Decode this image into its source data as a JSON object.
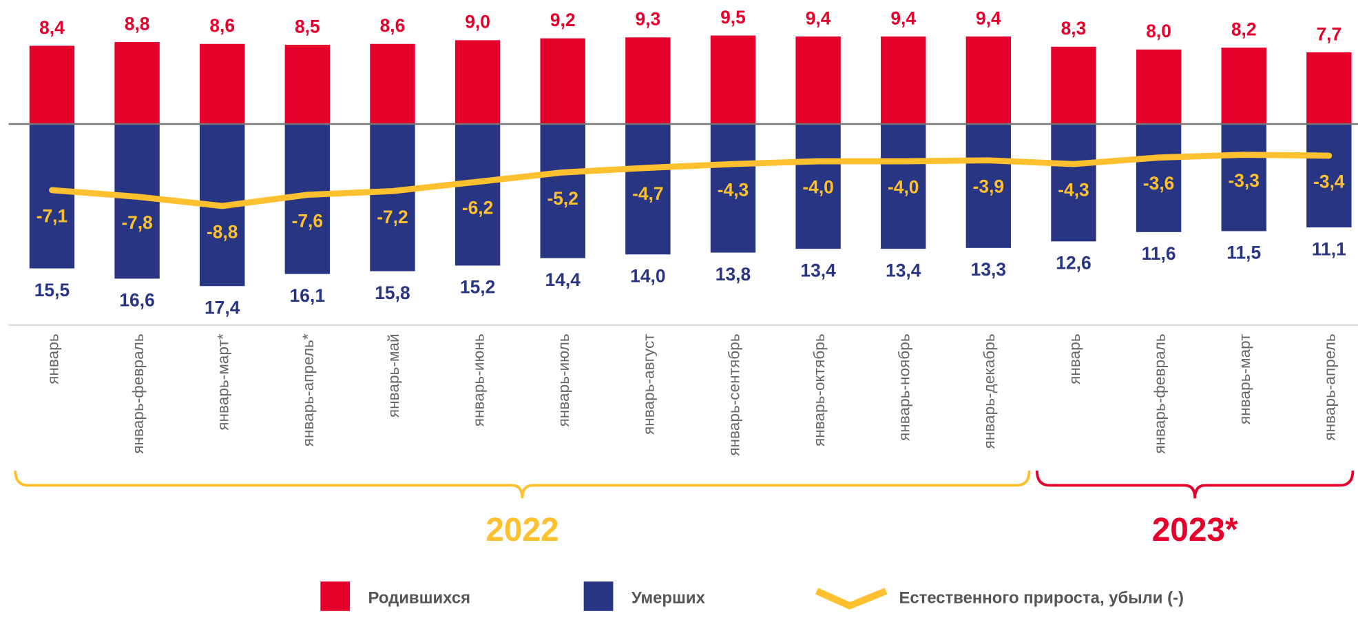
{
  "chart_data": {
    "type": "bar",
    "groups": [
      {
        "label": "2022",
        "color": "#fdc02f",
        "categories": [
          "январь",
          "январь-февраль",
          "январь-март*",
          "январь-апрель*",
          "январь-май",
          "январь-июнь",
          "январь-июль",
          "январь-август",
          "январь-сентябрь",
          "январь-октябрь",
          "январь-ноябрь",
          "январь-декабрь"
        ]
      },
      {
        "label": "2023*",
        "color": "#e4002b",
        "categories": [
          "январь",
          "январь-февраль",
          "январь-март",
          "январь-апрель"
        ]
      }
    ],
    "series": [
      {
        "name": "Родившихся",
        "color": "#e4002b",
        "direction": "up",
        "values": [
          8.4,
          8.8,
          8.6,
          8.5,
          8.6,
          9.0,
          9.2,
          9.3,
          9.5,
          9.4,
          9.4,
          9.4,
          8.3,
          8.0,
          8.2,
          7.7
        ],
        "value_labels": [
          "8,4",
          "8,8",
          "8,6",
          "8,5",
          "8,6",
          "9,0",
          "9,2",
          "9,3",
          "9,5",
          "9,4",
          "9,4",
          "9,4",
          "8,3",
          "8,0",
          "8,2",
          "7,7"
        ]
      },
      {
        "name": "Умерших",
        "color": "#283583",
        "direction": "down",
        "values": [
          15.5,
          16.6,
          17.4,
          16.1,
          15.8,
          15.2,
          14.4,
          14.0,
          13.8,
          13.4,
          13.4,
          13.3,
          12.6,
          11.6,
          11.5,
          11.1
        ],
        "value_labels": [
          "15,5",
          "16,6",
          "17,4",
          "16,1",
          "15,8",
          "15,2",
          "14,4",
          "14,0",
          "13,8",
          "13,4",
          "13,4",
          "13,3",
          "12,6",
          "11,6",
          "11,5",
          "11,1"
        ]
      },
      {
        "name": "Естественного прироста, убыли (-)",
        "color": "#fdc02f",
        "type": "line",
        "values": [
          -7.1,
          -7.8,
          -8.8,
          -7.6,
          -7.2,
          -6.2,
          -5.2,
          -4.7,
          -4.3,
          -4.0,
          -4.0,
          -3.9,
          -4.3,
          -3.6,
          -3.3,
          -3.4
        ],
        "value_labels": [
          "-7,1",
          "-7,8",
          "-8,8",
          "-7,6",
          "-7,2",
          "-6,2",
          "-5,2",
          "-4,7",
          "-4,3",
          "-4,0",
          "-4,0",
          "-3,9",
          "-4,3",
          "-3,6",
          "-3,3",
          "-3,4"
        ]
      }
    ]
  }
}
